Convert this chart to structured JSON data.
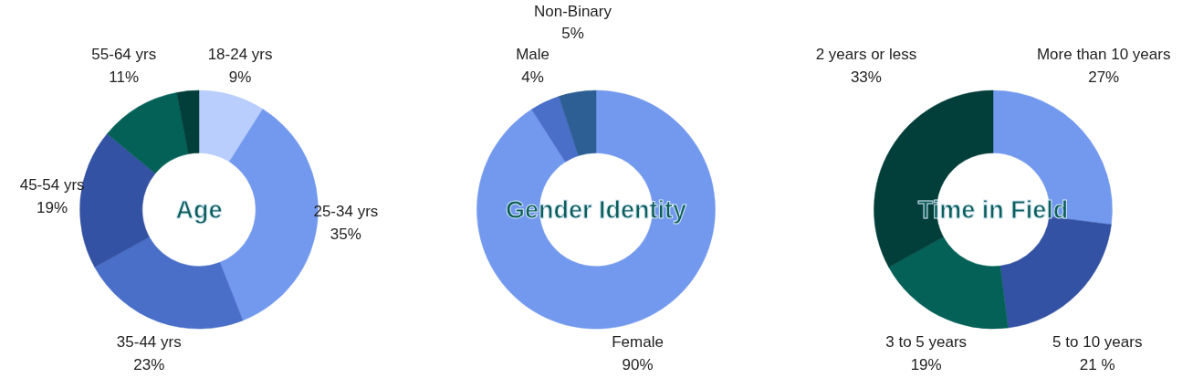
{
  "chart_data": [
    {
      "type": "donut",
      "title": "Age",
      "categories": [
        "18-24 yrs",
        "25-34 yrs",
        "35-44 yrs",
        "45-54 yrs",
        "55-64 yrs",
        null
      ],
      "values": [
        9,
        35,
        23,
        19,
        11,
        3
      ],
      "colors": [
        "#b9cefd",
        "#7399ee",
        "#4a6fc9",
        "#3452a3",
        "#046158",
        "#033f3a"
      ],
      "value_labels": [
        "9%",
        "35%",
        "23%",
        "19%",
        "11%",
        null
      ]
    },
    {
      "type": "donut",
      "title": "Gender Identity",
      "categories": [
        "Female",
        "Male",
        "Non-Binary"
      ],
      "values": [
        90,
        4,
        5
      ],
      "colors": [
        "#7399ee",
        "#4a6fc9",
        "#2d5f95"
      ],
      "value_labels": [
        "90%",
        "4%",
        "5%"
      ]
    },
    {
      "type": "donut",
      "title": "Time in Field",
      "categories": [
        "More than 10 years",
        "5 to 10 years",
        "3 to 5 years",
        "2 years or less"
      ],
      "values": [
        27,
        21,
        19,
        33
      ],
      "colors": [
        "#7399ee",
        "#3452a3",
        "#046158",
        "#033f3a"
      ],
      "value_labels": [
        "27%",
        "21 %",
        "19%",
        "33%"
      ]
    }
  ]
}
